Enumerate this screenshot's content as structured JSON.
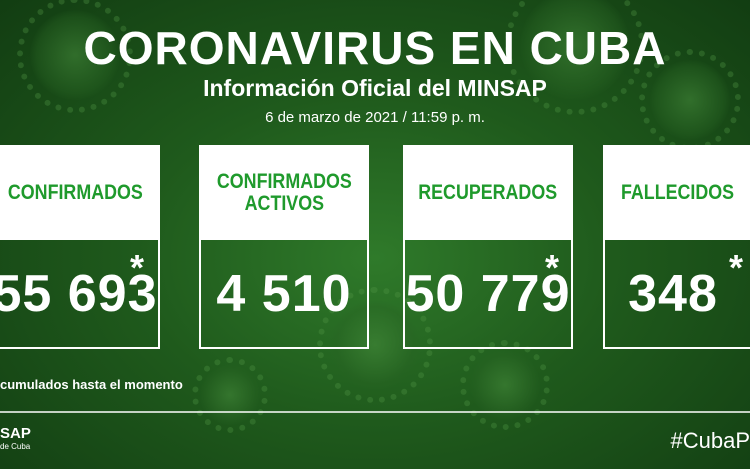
{
  "header": {
    "title": "CORONAVIRUS EN CUBA",
    "subtitle": "Información Oficial del MINSAP",
    "date": "6 de marzo de 2021 / 11:59 p. m."
  },
  "stats": [
    {
      "label_lines": [
        "CONFIRMADOS"
      ],
      "value": "55 693",
      "asterisk": "*"
    },
    {
      "label_lines": [
        "CONFIRMADOS",
        "ACTIVOS"
      ],
      "value": "4 510",
      "asterisk": ""
    },
    {
      "label_lines": [
        "RECUPERADOS"
      ],
      "value": "50 779",
      "asterisk": "*"
    },
    {
      "label_lines": [
        "FALLECIDOS"
      ],
      "value": "348",
      "asterisk": "*"
    }
  ],
  "footnote": "cumulados hasta el momento",
  "footer": {
    "logo_line1": "SAP",
    "logo_line2": "de Cuba",
    "hashtag": "#CubaP"
  },
  "colors": {
    "background": "#1f5a1c",
    "accent_green": "#1f9a2c",
    "card_white": "#ffffff"
  }
}
